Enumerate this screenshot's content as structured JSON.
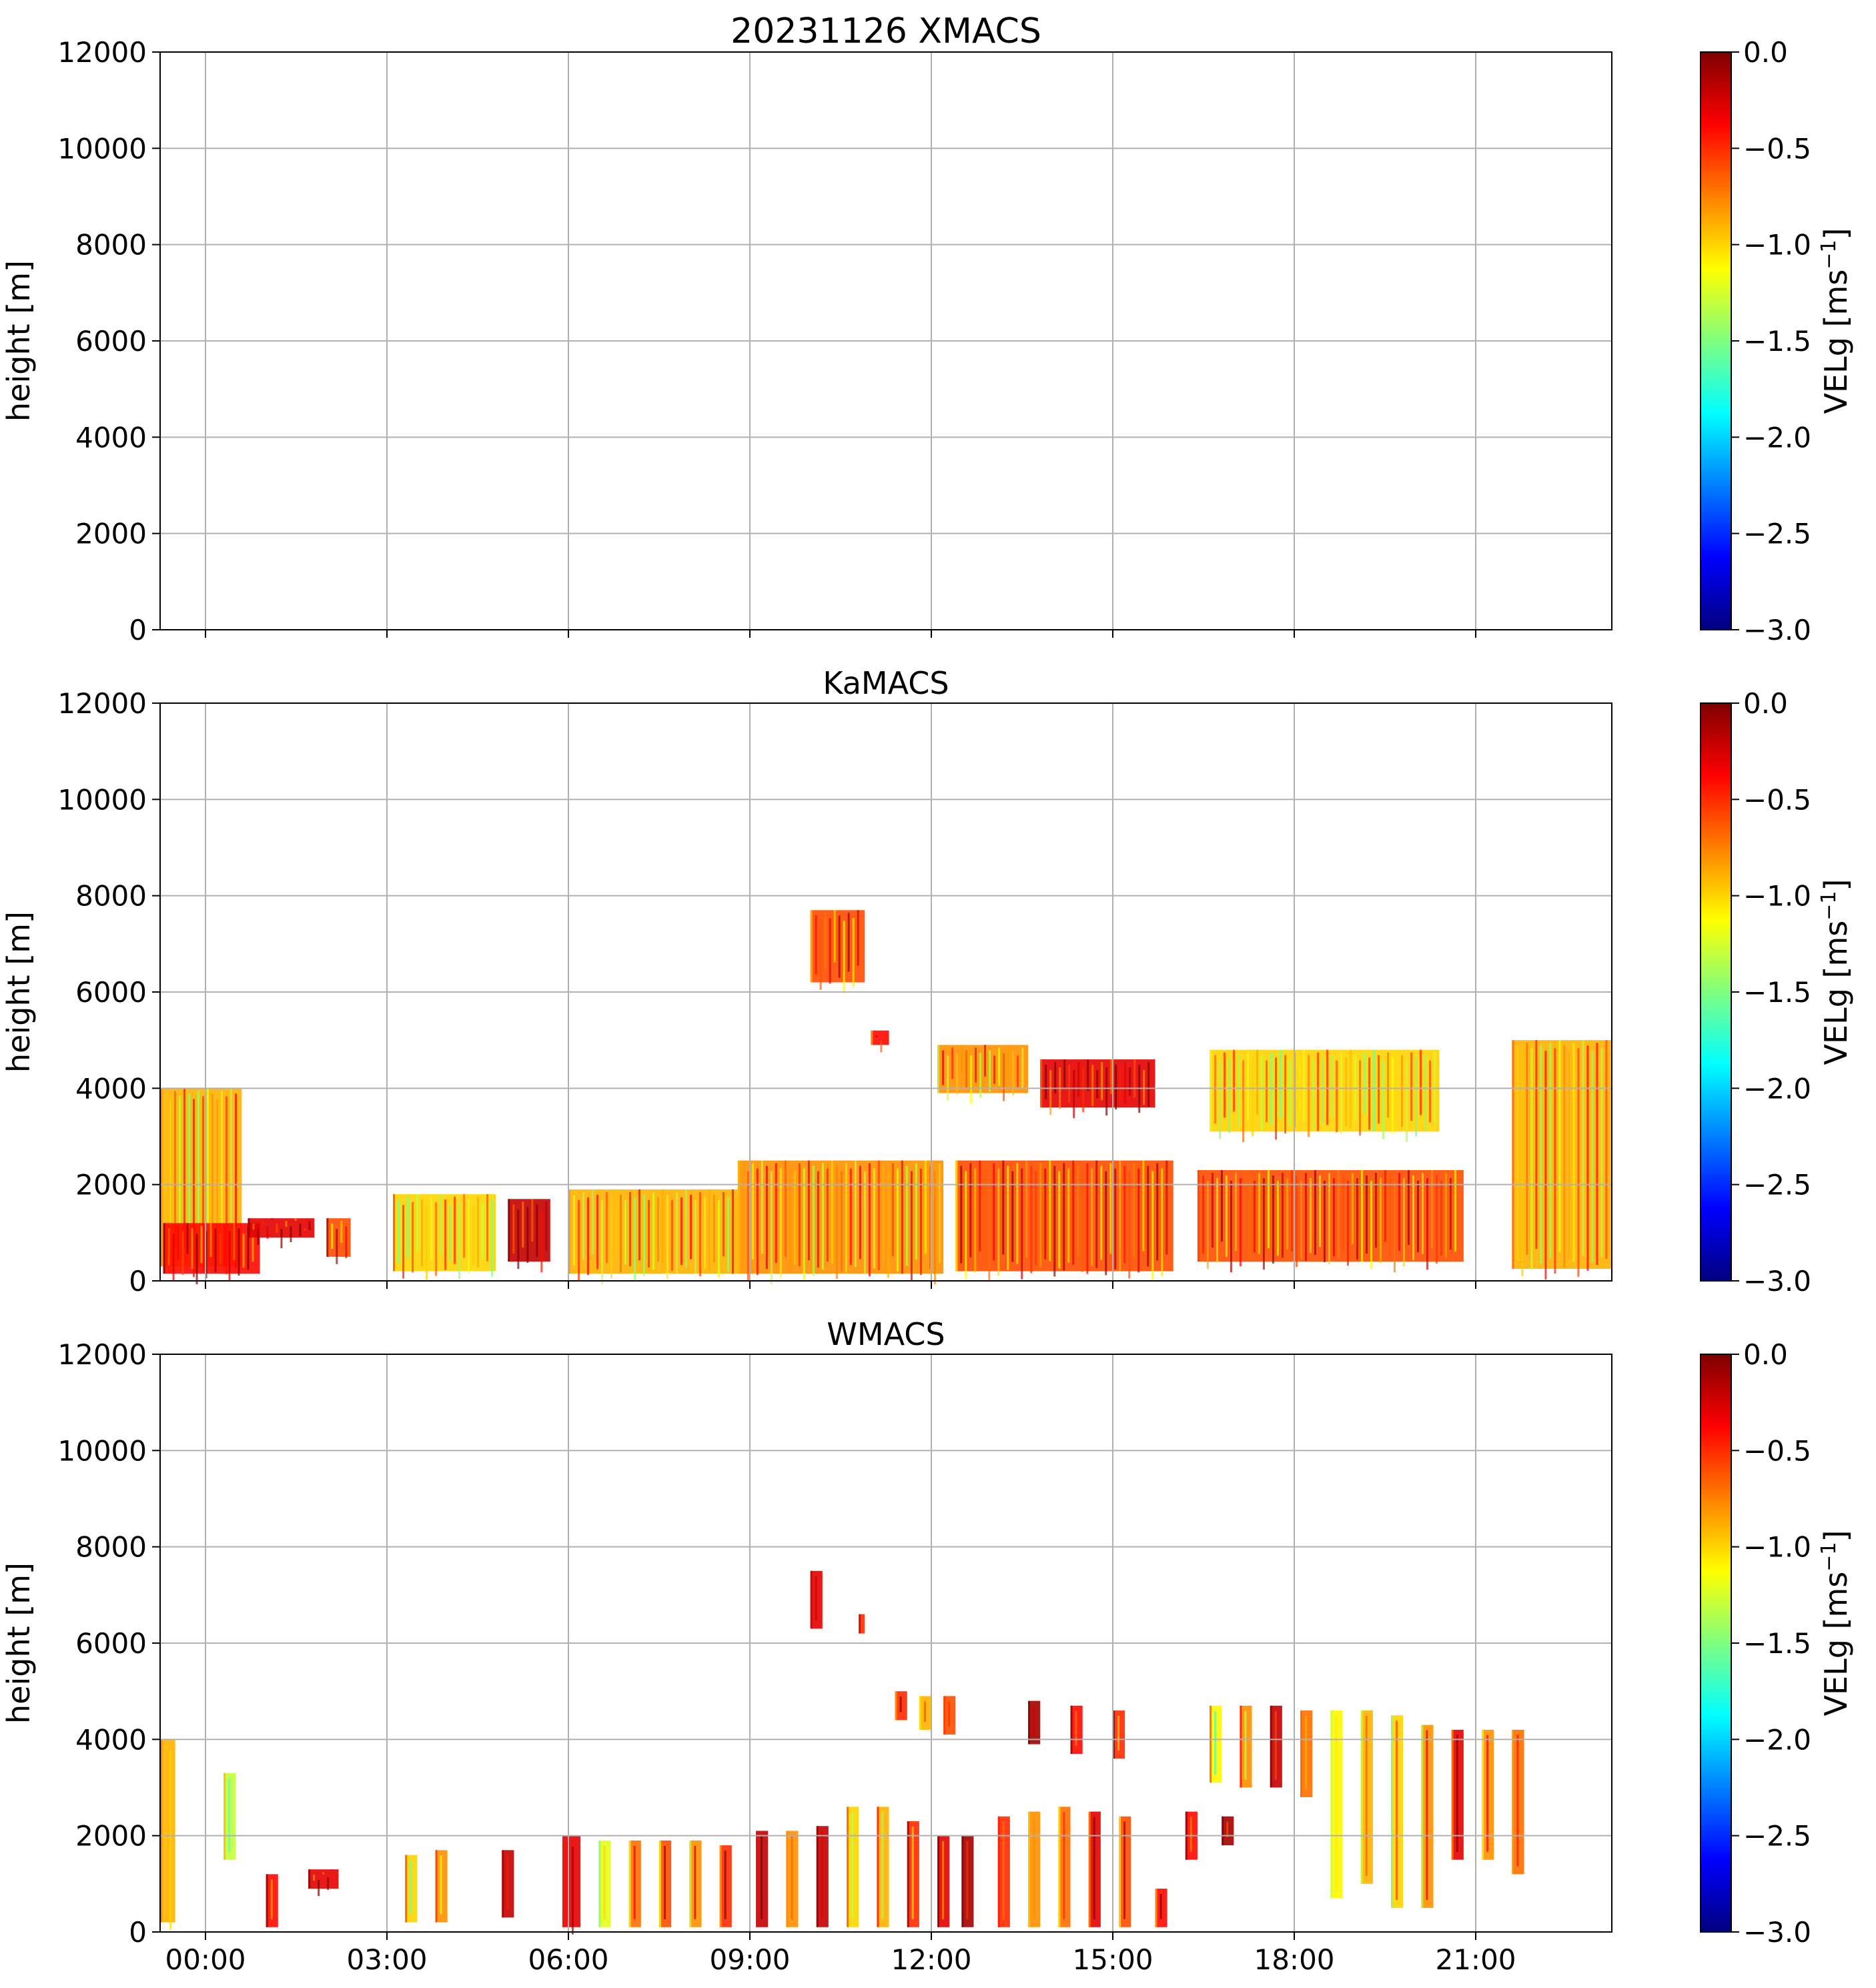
{
  "chart_data": [
    {
      "type": "heatmap",
      "title": "20231126 XMACS",
      "xlabel": "",
      "ylabel": "height [m]",
      "ylim": [
        0,
        12000
      ],
      "yticks": [
        0,
        2000,
        4000,
        6000,
        8000,
        10000,
        12000
      ],
      "xlim_hours": [
        -0.75,
        23.25
      ],
      "xtick_hours": [
        0,
        3,
        6,
        9,
        12,
        15,
        18,
        21
      ],
      "xticklabels": [],
      "grid": true,
      "colorbar": {
        "label": "VELg [ms−1]",
        "label_text": "VELg [ms",
        "label_sup": "−1",
        "label_end": "]",
        "min": -3.0,
        "max": 0.0,
        "ticks": [
          "0.0",
          "−0.5",
          "−1.0",
          "−1.5",
          "−2.0",
          "−2.5",
          "−3.0"
        ],
        "tick_values": [
          0.0,
          -0.5,
          -1.0,
          -1.5,
          -2.0,
          -2.5,
          -3.0
        ],
        "colormap": "jet"
      },
      "echo_regions": []
    },
    {
      "type": "heatmap",
      "title": "KaMACS",
      "xlabel": "",
      "ylabel": "height [m]",
      "ylim": [
        0,
        12000
      ],
      "yticks": [
        0,
        2000,
        4000,
        6000,
        8000,
        10000,
        12000
      ],
      "xlim_hours": [
        -0.75,
        23.25
      ],
      "xtick_hours": [
        0,
        3,
        6,
        9,
        12,
        15,
        18,
        21
      ],
      "xticklabels": [],
      "grid": true,
      "colorbar": {
        "label": "VELg [ms−1]",
        "label_text": "VELg [ms",
        "label_sup": "−1",
        "label_end": "]",
        "min": -3.0,
        "max": 0.0,
        "ticks": [
          "0.0",
          "−0.5",
          "−1.0",
          "−1.5",
          "−2.0",
          "−2.5",
          "−3.0"
        ],
        "tick_values": [
          0.0,
          -0.5,
          -1.0,
          -1.5,
          -2.0,
          -2.5,
          -3.0
        ],
        "colormap": "jet"
      },
      "echo_regions": [
        {
          "t0": -0.75,
          "t1": 0.6,
          "h0": 300,
          "h1": 4000,
          "vel": -0.9
        },
        {
          "t0": -0.7,
          "t1": 0.9,
          "h0": 150,
          "h1": 1200,
          "vel": -0.4
        },
        {
          "t0": 0.7,
          "t1": 1.8,
          "h0": 900,
          "h1": 1300,
          "vel": -0.3
        },
        {
          "t0": 2.0,
          "t1": 2.4,
          "h0": 500,
          "h1": 1300,
          "vel": -0.6
        },
        {
          "t0": 3.1,
          "t1": 4.8,
          "h0": 200,
          "h1": 1800,
          "vel": -1.0
        },
        {
          "t0": 5.0,
          "t1": 5.7,
          "h0": 400,
          "h1": 1700,
          "vel": -0.2
        },
        {
          "t0": 6.0,
          "t1": 8.8,
          "h0": 150,
          "h1": 1900,
          "vel": -0.9
        },
        {
          "t0": 8.8,
          "t1": 12.2,
          "h0": 150,
          "h1": 2500,
          "vel": -0.8
        },
        {
          "t0": 10.0,
          "t1": 10.9,
          "h0": 6200,
          "h1": 7700,
          "vel": -0.6
        },
        {
          "t0": 11.0,
          "t1": 11.3,
          "h0": 4900,
          "h1": 5200,
          "vel": -0.4
        },
        {
          "t0": 12.1,
          "t1": 13.6,
          "h0": 3900,
          "h1": 4900,
          "vel": -0.8
        },
        {
          "t0": 12.4,
          "t1": 16.0,
          "h0": 200,
          "h1": 2500,
          "vel": -0.6
        },
        {
          "t0": 13.8,
          "t1": 15.7,
          "h0": 3600,
          "h1": 4600,
          "vel": -0.3
        },
        {
          "t0": 16.6,
          "t1": 20.4,
          "h0": 3100,
          "h1": 4800,
          "vel": -1.0
        },
        {
          "t0": 16.4,
          "t1": 20.8,
          "h0": 400,
          "h1": 2300,
          "vel": -0.6
        },
        {
          "t0": 21.6,
          "t1": 23.25,
          "h0": 250,
          "h1": 5000,
          "vel": -0.9
        }
      ]
    },
    {
      "type": "heatmap",
      "title": "WMACS",
      "xlabel": "",
      "ylabel": "height [m]",
      "ylim": [
        0,
        12000
      ],
      "yticks": [
        0,
        2000,
        4000,
        6000,
        8000,
        10000,
        12000
      ],
      "xlim_hours": [
        -0.75,
        23.25
      ],
      "xtick_hours": [
        0,
        3,
        6,
        9,
        12,
        15,
        18,
        21
      ],
      "xticklabels": [
        "00:00",
        "03:00",
        "06:00",
        "09:00",
        "12:00",
        "15:00",
        "18:00",
        "21:00"
      ],
      "grid": true,
      "colorbar": {
        "label": "VELg [ms−1]",
        "label_text": "VELg [ms",
        "label_sup": "−1",
        "label_end": "]",
        "min": -3.0,
        "max": 0.0,
        "ticks": [
          "0.0",
          "−0.5",
          "−1.0",
          "−1.5",
          "−2.0",
          "−2.5",
          "−3.0"
        ],
        "tick_values": [
          0.0,
          -0.5,
          -1.0,
          -1.5,
          -2.0,
          -2.5,
          -3.0
        ],
        "colormap": "jet"
      },
      "echo_regions": [
        {
          "t0": -0.75,
          "t1": -0.5,
          "h0": 200,
          "h1": 4000,
          "vel": -0.9
        },
        {
          "t0": 0.3,
          "t1": 0.5,
          "h0": 1500,
          "h1": 3300,
          "vel": -1.3
        },
        {
          "t0": 1.0,
          "t1": 1.2,
          "h0": 100,
          "h1": 1200,
          "vel": -0.4
        },
        {
          "t0": 1.7,
          "t1": 2.2,
          "h0": 900,
          "h1": 1300,
          "vel": -0.3
        },
        {
          "t0": 3.3,
          "t1": 3.5,
          "h0": 200,
          "h1": 1600,
          "vel": -1.0
        },
        {
          "t0": 3.8,
          "t1": 4.0,
          "h0": 200,
          "h1": 1700,
          "vel": -0.8
        },
        {
          "t0": 4.9,
          "t1": 5.1,
          "h0": 300,
          "h1": 1700,
          "vel": -0.2
        },
        {
          "t0": 5.9,
          "t1": 6.2,
          "h0": 100,
          "h1": 2000,
          "vel": -0.3
        },
        {
          "t0": 6.5,
          "t1": 6.7,
          "h0": 100,
          "h1": 1900,
          "vel": -1.2
        },
        {
          "t0": 7.0,
          "t1": 7.2,
          "h0": 100,
          "h1": 1900,
          "vel": -0.7
        },
        {
          "t0": 7.5,
          "t1": 7.7,
          "h0": 100,
          "h1": 1900,
          "vel": -0.6
        },
        {
          "t0": 8.0,
          "t1": 8.2,
          "h0": 100,
          "h1": 1900,
          "vel": -0.8
        },
        {
          "t0": 8.5,
          "t1": 8.7,
          "h0": 100,
          "h1": 1800,
          "vel": -0.5
        },
        {
          "t0": 9.1,
          "t1": 9.3,
          "h0": 100,
          "h1": 2100,
          "vel": -0.2
        },
        {
          "t0": 9.6,
          "t1": 9.8,
          "h0": 100,
          "h1": 2100,
          "vel": -0.8
        },
        {
          "t0": 10.1,
          "t1": 10.3,
          "h0": 100,
          "h1": 2200,
          "vel": -0.2
        },
        {
          "t0": 10.6,
          "t1": 10.8,
          "h0": 100,
          "h1": 2600,
          "vel": -1.0
        },
        {
          "t0": 11.1,
          "t1": 11.3,
          "h0": 100,
          "h1": 2600,
          "vel": -0.9
        },
        {
          "t0": 11.6,
          "t1": 11.8,
          "h0": 100,
          "h1": 2300,
          "vel": -0.5
        },
        {
          "t0": 12.1,
          "t1": 12.3,
          "h0": 100,
          "h1": 2000,
          "vel": -0.3
        },
        {
          "t0": 12.5,
          "t1": 12.7,
          "h0": 100,
          "h1": 2000,
          "vel": -0.1
        },
        {
          "t0": 13.1,
          "t1": 13.3,
          "h0": 100,
          "h1": 2400,
          "vel": -0.5
        },
        {
          "t0": 13.6,
          "t1": 13.8,
          "h0": 100,
          "h1": 2500,
          "vel": -0.8
        },
        {
          "t0": 14.1,
          "t1": 14.3,
          "h0": 100,
          "h1": 2600,
          "vel": -0.7
        },
        {
          "t0": 14.6,
          "t1": 14.8,
          "h0": 100,
          "h1": 2500,
          "vel": -0.3
        },
        {
          "t0": 15.1,
          "t1": 15.3,
          "h0": 100,
          "h1": 2400,
          "vel": -0.6
        },
        {
          "t0": 15.7,
          "t1": 15.9,
          "h0": 100,
          "h1": 900,
          "vel": -0.4
        },
        {
          "t0": 11.4,
          "t1": 11.6,
          "h0": 4400,
          "h1": 5000,
          "vel": -0.5
        },
        {
          "t0": 11.8,
          "t1": 12.0,
          "h0": 4200,
          "h1": 4900,
          "vel": -0.9
        },
        {
          "t0": 12.2,
          "t1": 12.4,
          "h0": 4100,
          "h1": 4900,
          "vel": -0.6
        },
        {
          "t0": 13.6,
          "t1": 13.8,
          "h0": 3900,
          "h1": 4800,
          "vel": -0.1
        },
        {
          "t0": 14.3,
          "t1": 14.5,
          "h0": 3700,
          "h1": 4700,
          "vel": -0.4
        },
        {
          "t0": 15.0,
          "t1": 15.2,
          "h0": 3600,
          "h1": 4600,
          "vel": -0.5
        },
        {
          "t0": 16.6,
          "t1": 16.8,
          "h0": 3100,
          "h1": 4700,
          "vel": -1.1
        },
        {
          "t0": 17.1,
          "t1": 17.3,
          "h0": 3000,
          "h1": 4700,
          "vel": -0.8
        },
        {
          "t0": 17.6,
          "t1": 17.8,
          "h0": 3000,
          "h1": 4700,
          "vel": -0.2
        },
        {
          "t0": 18.1,
          "t1": 18.3,
          "h0": 2800,
          "h1": 4600,
          "vel": -0.7
        },
        {
          "t0": 18.6,
          "t1": 18.8,
          "h0": 700,
          "h1": 4600,
          "vel": -1.1
        },
        {
          "t0": 19.1,
          "t1": 19.3,
          "h0": 1000,
          "h1": 4600,
          "vel": -0.9
        },
        {
          "t0": 19.6,
          "t1": 19.8,
          "h0": 500,
          "h1": 4500,
          "vel": -1.0
        },
        {
          "t0": 20.1,
          "t1": 20.3,
          "h0": 500,
          "h1": 4300,
          "vel": -0.8
        },
        {
          "t0": 20.6,
          "t1": 20.8,
          "h0": 1500,
          "h1": 4200,
          "vel": -0.3
        },
        {
          "t0": 21.1,
          "t1": 21.3,
          "h0": 1500,
          "h1": 4200,
          "vel": -0.8
        },
        {
          "t0": 21.6,
          "t1": 21.8,
          "h0": 1200,
          "h1": 4200,
          "vel": -0.7
        },
        {
          "t0": 10.0,
          "t1": 10.2,
          "h0": 6300,
          "h1": 7500,
          "vel": -0.3
        },
        {
          "t0": 10.8,
          "t1": 10.9,
          "h0": 6200,
          "h1": 6600,
          "vel": -0.5
        },
        {
          "t0": 16.2,
          "t1": 16.4,
          "h0": 1500,
          "h1": 2500,
          "vel": -0.4
        },
        {
          "t0": 16.8,
          "t1": 17.0,
          "h0": 1800,
          "h1": 2400,
          "vel": -0.1
        }
      ]
    }
  ]
}
